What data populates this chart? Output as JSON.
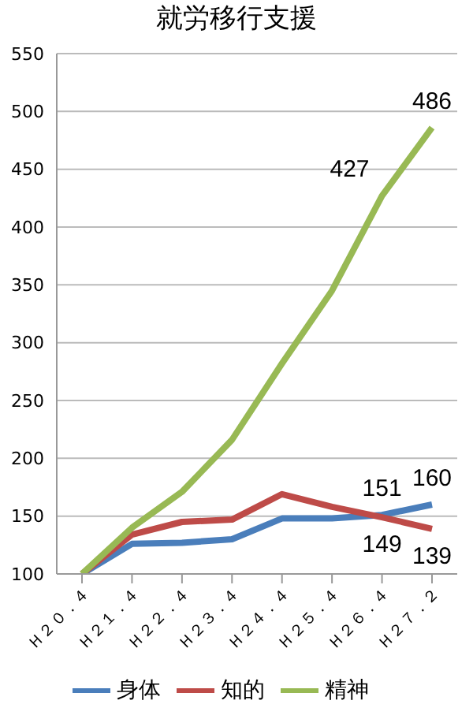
{
  "chart_data": {
    "type": "line",
    "title": "就労移行支援",
    "categories": [
      "Ｈ２０．４",
      "Ｈ２１．４",
      "Ｈ２２．４",
      "Ｈ２３．４",
      "Ｈ２４．４",
      "Ｈ２５．４",
      "Ｈ２６．４",
      "Ｈ２７．２"
    ],
    "series": [
      {
        "name": "身体",
        "color": "#4a7ebb",
        "values": [
          100,
          126,
          127,
          130,
          148,
          148,
          151,
          160
        ],
        "value_labels": [
          null,
          null,
          null,
          null,
          null,
          null,
          "151",
          "160"
        ]
      },
      {
        "name": "知的",
        "color": "#be4b48",
        "values": [
          100,
          134,
          145,
          147,
          169,
          158,
          149,
          139
        ],
        "value_labels": [
          null,
          null,
          null,
          null,
          null,
          null,
          "149",
          "139"
        ]
      },
      {
        "name": "精神",
        "color": "#98b954",
        "values": [
          100,
          140,
          171,
          216,
          282,
          345,
          427,
          486
        ],
        "value_labels": [
          null,
          null,
          null,
          null,
          null,
          null,
          "427",
          "486"
        ]
      }
    ],
    "ylim": [
      100,
      550
    ],
    "yticks": [
      100,
      150,
      200,
      250,
      300,
      350,
      400,
      450,
      500,
      550
    ],
    "grid": "y",
    "legend": "bottom",
    "marker": "none",
    "line_style": "solid"
  }
}
